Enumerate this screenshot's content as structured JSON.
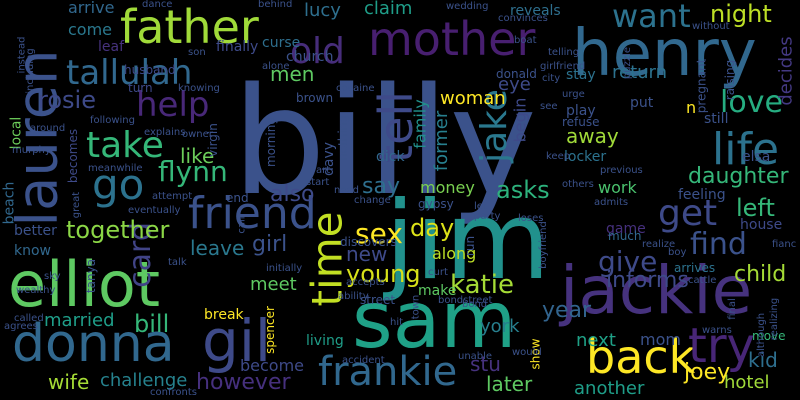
{
  "colors": {
    "background": "#000000",
    "palette": [
      "#440154",
      "#46327e",
      "#365c8d",
      "#277f8e",
      "#1fa187",
      "#4ac16d",
      "#a0da39",
      "#fde725"
    ]
  },
  "words": [
    {
      "text": "billy",
      "color": "#3b528b"
    },
    {
      "text": "jim",
      "color": "#21918c"
    },
    {
      "text": "sam",
      "color": "#1fa187"
    },
    {
      "text": "elliot",
      "color": "#5ec962"
    },
    {
      "text": "henry",
      "color": "#31688e"
    },
    {
      "text": "jackie",
      "color": "#46327e"
    },
    {
      "text": "lauren",
      "color": "#3b528b"
    },
    {
      "text": "father",
      "color": "#a0da39"
    },
    {
      "text": "mother",
      "color": "#481f70"
    },
    {
      "text": "donna",
      "color": "#31688e"
    },
    {
      "text": "gil",
      "color": "#3e4a89"
    },
    {
      "text": "frankie",
      "color": "#31688e"
    },
    {
      "text": "back",
      "color": "#fde725"
    },
    {
      "text": "friend",
      "color": "#3b528b"
    },
    {
      "text": "go",
      "color": "#2c728e"
    },
    {
      "text": "tallulah",
      "color": "#31688e"
    },
    {
      "text": "tell",
      "color": "#3e4a89"
    },
    {
      "text": "try",
      "color": "#482677"
    },
    {
      "text": "life",
      "color": "#2c728e"
    },
    {
      "text": "get",
      "color": "#3e4a89"
    },
    {
      "text": "time",
      "color": "#c2df23"
    },
    {
      "text": "want",
      "color": "#2c728e"
    },
    {
      "text": "take",
      "color": "#35b779"
    },
    {
      "text": "help",
      "color": "#482878"
    },
    {
      "text": "old",
      "color": "#472d7b"
    },
    {
      "text": "jake",
      "color": "#2a788e"
    },
    {
      "text": "find",
      "color": "#3b528b"
    },
    {
      "text": "give",
      "color": "#3e4a89"
    },
    {
      "text": "love",
      "color": "#26ad81"
    },
    {
      "text": "sex",
      "color": "#fde725"
    },
    {
      "text": "flynn",
      "color": "#35b779"
    },
    {
      "text": "night",
      "color": "#bddf26"
    },
    {
      "text": "katie",
      "color": "#a5db36"
    },
    {
      "text": "left",
      "color": "#35b779"
    },
    {
      "text": "asks",
      "color": "#2db27d"
    },
    {
      "text": "card",
      "color": "#414487"
    },
    {
      "text": "bill",
      "color": "#35b779"
    },
    {
      "text": "married",
      "color": "#1f9e89"
    },
    {
      "text": "challenge",
      "color": "#26828e"
    },
    {
      "text": "however",
      "color": "#46307e"
    },
    {
      "text": "wife",
      "color": "#a5db36"
    },
    {
      "text": "year",
      "color": "#32648e"
    },
    {
      "text": "young",
      "color": "#d8e219"
    },
    {
      "text": "together",
      "color": "#8bd646"
    },
    {
      "text": "leave",
      "color": "#2a788e"
    },
    {
      "text": "girl",
      "color": "#3b528b"
    },
    {
      "text": "like",
      "color": "#6ccd5a"
    },
    {
      "text": "also",
      "color": "#3e4a89"
    },
    {
      "text": "say",
      "color": "#2e6f8e"
    },
    {
      "text": "day",
      "color": "#dde318"
    },
    {
      "text": "new",
      "color": "#3e4a89"
    },
    {
      "text": "rosie",
      "color": "#3e4a89"
    },
    {
      "text": "daughter",
      "color": "#35b779"
    },
    {
      "text": "child",
      "color": "#a5db36"
    },
    {
      "text": "kid",
      "color": "#2e6f8e"
    },
    {
      "text": "hotel",
      "color": "#a0da39"
    },
    {
      "text": "joey",
      "color": "#fde725"
    },
    {
      "text": "informs",
      "color": "#3e4a89"
    },
    {
      "text": "another",
      "color": "#1f9e89"
    },
    {
      "text": "later",
      "color": "#5ec962"
    },
    {
      "text": "next",
      "color": "#1fa187"
    },
    {
      "text": "mom",
      "color": "#3b528b"
    },
    {
      "text": "york",
      "color": "#277f8e"
    },
    {
      "text": "stu",
      "color": "#46327e"
    },
    {
      "text": "meet",
      "color": "#5ec962"
    },
    {
      "text": "living",
      "color": "#1f9e89"
    },
    {
      "text": "become",
      "color": "#3e4a89"
    },
    {
      "text": "break",
      "color": "#fde725"
    },
    {
      "text": "make",
      "color": "#5ec962"
    },
    {
      "text": "along",
      "color": "#bddf26"
    },
    {
      "text": "money",
      "color": "#7ad151"
    },
    {
      "text": "work",
      "color": "#4ac16d"
    },
    {
      "text": "locker",
      "color": "#2c728e"
    },
    {
      "text": "away",
      "color": "#a0da39"
    },
    {
      "text": "former",
      "color": "#277f8e"
    },
    {
      "text": "family",
      "color": "#21918c"
    },
    {
      "text": "begin",
      "color": "#3e4a89"
    },
    {
      "text": "eye",
      "color": "#3e4a89"
    },
    {
      "text": "woman",
      "color": "#fde725"
    },
    {
      "text": "claim",
      "color": "#1f9e89"
    },
    {
      "text": "lucy",
      "color": "#2e6f8e"
    },
    {
      "text": "men",
      "color": "#5ec962"
    },
    {
      "text": "curse",
      "color": "#2e6f8e"
    },
    {
      "text": "finally",
      "color": "#3e4a89"
    },
    {
      "text": "come",
      "color": "#2a788e"
    },
    {
      "text": "arrive",
      "color": "#31688e"
    },
    {
      "text": "leaf",
      "color": "#46327e"
    },
    {
      "text": "husband",
      "color": "#3e4a89"
    },
    {
      "text": "turn",
      "color": "#3e4a89"
    },
    {
      "text": "church",
      "color": "#3b528b"
    },
    {
      "text": "decides",
      "color": "#443983"
    },
    {
      "text": "return",
      "color": "#2c728e"
    },
    {
      "text": "stay",
      "color": "#2c728e"
    },
    {
      "text": "reveals",
      "color": "#2e6f8e"
    },
    {
      "text": "still",
      "color": "#3b528b"
    },
    {
      "text": "elsa",
      "color": "#3b528b"
    },
    {
      "text": "feeling",
      "color": "#3b528b"
    },
    {
      "text": "house",
      "color": "#3e4a89"
    },
    {
      "text": "game",
      "color": "#46307e"
    },
    {
      "text": "arrives",
      "color": "#2c728e"
    },
    {
      "text": "move",
      "color": "#35b779"
    },
    {
      "text": "put",
      "color": "#3b528b"
    },
    {
      "text": "play",
      "color": "#3b528b"
    },
    {
      "text": "refuse",
      "color": "#3b528b"
    },
    {
      "text": "dick",
      "color": "#31688e"
    },
    {
      "text": "davy",
      "color": "#3b528b"
    },
    {
      "text": "beach",
      "color": "#31688e"
    },
    {
      "text": "local",
      "color": "#6ccd5a"
    },
    {
      "text": "becomes",
      "color": "#3e4a89"
    },
    {
      "text": "better",
      "color": "#3b528b"
    },
    {
      "text": "know",
      "color": "#31688e"
    },
    {
      "text": "tanya",
      "color": "#3b528b"
    },
    {
      "text": "virgin",
      "color": "#3b528b"
    },
    {
      "text": "end",
      "color": "#3b528b"
    },
    {
      "text": "brown",
      "color": "#3b528b"
    },
    {
      "text": "morning",
      "color": "#3b528b"
    },
    {
      "text": "nothing",
      "color": "#3b528b"
    },
    {
      "text": "donald",
      "color": "#3b528b"
    },
    {
      "text": "show",
      "color": "#fde725"
    },
    {
      "text": "much",
      "color": "#31688e"
    },
    {
      "text": "run",
      "color": "#3b528b"
    },
    {
      "text": "street",
      "color": "#3b528b"
    },
    {
      "text": "spencer",
      "color": "#fde725"
    },
    {
      "text": "pregnant",
      "color": "#3b528b"
    },
    {
      "text": "raising",
      "color": "#3b528b"
    },
    {
      "text": "n",
      "color": "#fde725"
    },
    {
      "text": "gypsy",
      "color": "#3b528b"
    },
    {
      "text": "discovers",
      "color": "#3b528b"
    },
    {
      "text": "dance",
      "color": "#3b528b"
    },
    {
      "text": "behind",
      "color": "#3b528b"
    },
    {
      "text": "wedding",
      "color": "#3b528b"
    },
    {
      "text": "convinces",
      "color": "#3b528b"
    },
    {
      "text": "boat",
      "color": "#3b528b"
    },
    {
      "text": "telling",
      "color": "#3b528b"
    },
    {
      "text": "girlfriend",
      "color": "#3b528b"
    },
    {
      "text": "son",
      "color": "#3b528b"
    },
    {
      "text": "alone",
      "color": "#3b528b"
    },
    {
      "text": "cocaine",
      "color": "#3b528b"
    },
    {
      "text": "knowing",
      "color": "#3b528b"
    },
    {
      "text": "following",
      "color": "#3b528b"
    },
    {
      "text": "explains",
      "color": "#3b528b"
    },
    {
      "text": "owner",
      "color": "#3b528b"
    },
    {
      "text": "around",
      "color": "#3b528b"
    },
    {
      "text": "murphy",
      "color": "#3b528b"
    },
    {
      "text": "meanwhile",
      "color": "#3b528b"
    },
    {
      "text": "eventually",
      "color": "#3b528b"
    },
    {
      "text": "attempt",
      "color": "#3b528b"
    },
    {
      "text": "start",
      "color": "#3b528b"
    },
    {
      "text": "need",
      "color": "#3b528b"
    },
    {
      "text": "change",
      "color": "#3b528b"
    },
    {
      "text": "art",
      "color": "#3b528b"
    },
    {
      "text": "city",
      "color": "#3b528b"
    },
    {
      "text": "urge",
      "color": "#3b528b"
    },
    {
      "text": "keep",
      "color": "#3b528b"
    },
    {
      "text": "others",
      "color": "#3b528b"
    },
    {
      "text": "previous",
      "color": "#3b528b"
    },
    {
      "text": "puzzle",
      "color": "#3b528b"
    },
    {
      "text": "without",
      "color": "#3b528b"
    },
    {
      "text": "admits",
      "color": "#3b528b"
    },
    {
      "text": "loses",
      "color": "#3b528b"
    },
    {
      "text": "boyfriend",
      "color": "#3b528b"
    },
    {
      "text": "realize",
      "color": "#3b528b"
    },
    {
      "text": "boy",
      "color": "#3b528b"
    },
    {
      "text": "cattle",
      "color": "#3b528b"
    },
    {
      "text": "fianc",
      "color": "#3b528b"
    },
    {
      "text": "final",
      "color": "#3b528b"
    },
    {
      "text": "although",
      "color": "#3b528b"
    },
    {
      "text": "realizing",
      "color": "#3b528b"
    },
    {
      "text": "warns",
      "color": "#3b528b"
    },
    {
      "text": "unable",
      "color": "#3b528b"
    },
    {
      "text": "would",
      "color": "#3b528b"
    },
    {
      "text": "accident",
      "color": "#3b528b"
    },
    {
      "text": "hit",
      "color": "#3b528b"
    },
    {
      "text": "bondstreet",
      "color": "#3b528b"
    },
    {
      "text": "town",
      "color": "#3b528b"
    },
    {
      "text": "curt",
      "color": "#3b528b"
    },
    {
      "text": "accepts",
      "color": "#3b528b"
    },
    {
      "text": "ability",
      "color": "#3b528b"
    },
    {
      "text": "initially",
      "color": "#3b528b"
    },
    {
      "text": "talk",
      "color": "#3b528b"
    },
    {
      "text": "called",
      "color": "#3b528b"
    },
    {
      "text": "agrees",
      "color": "#3b528b"
    },
    {
      "text": "wealthy",
      "color": "#3b528b"
    },
    {
      "text": "sky",
      "color": "#3b528b"
    },
    {
      "text": "confronts",
      "color": "#3b528b"
    },
    {
      "text": "instead",
      "color": "#3b528b"
    },
    {
      "text": "including",
      "color": "#3b528b"
    },
    {
      "text": "party",
      "color": "#3b528b"
    },
    {
      "text": "let",
      "color": "#3b528b"
    },
    {
      "text": "call",
      "color": "#3b528b"
    },
    {
      "text": "see",
      "color": "#3b528b"
    },
    {
      "text": "great",
      "color": "#3b528b"
    },
    {
      "text": "bond",
      "color": "#3b528b"
    }
  ]
}
